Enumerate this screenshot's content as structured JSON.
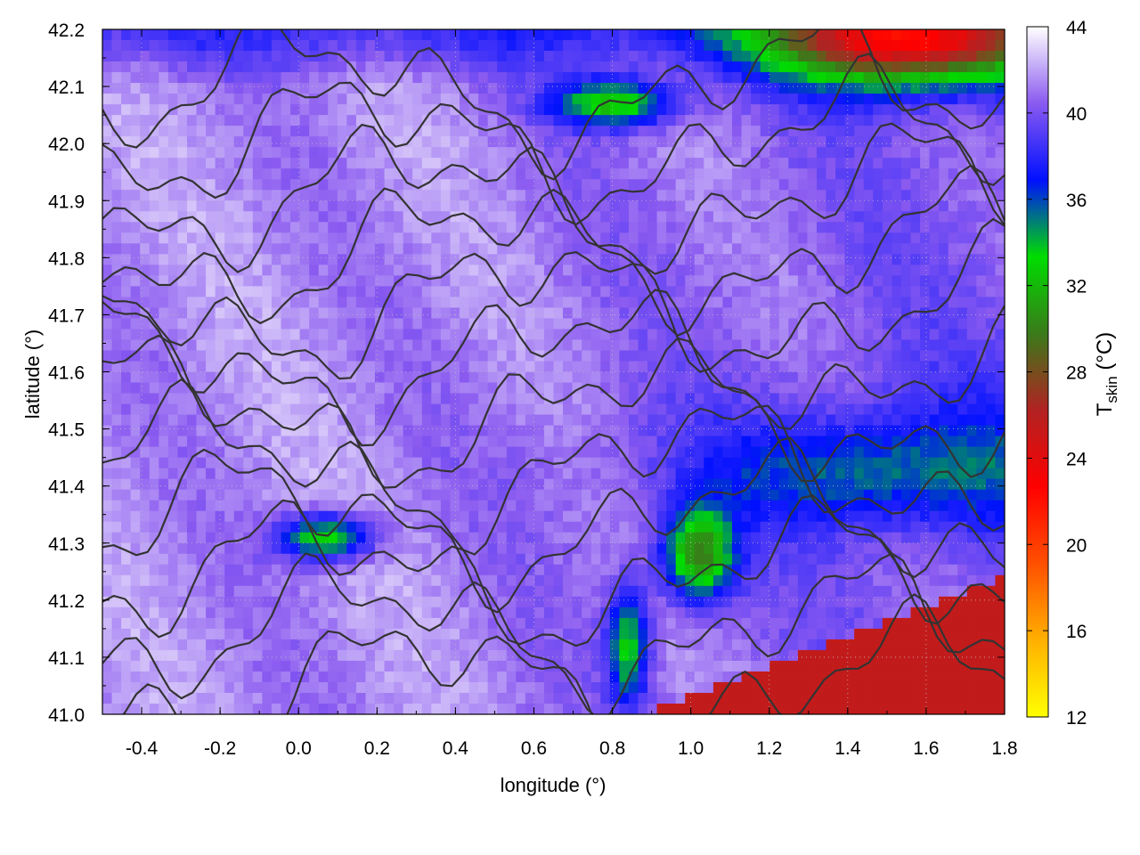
{
  "chart_data": {
    "type": "heatmap",
    "title": "",
    "xlabel": "longitude (°)",
    "ylabel": "latitude (°)",
    "xlim": [
      -0.5,
      1.8
    ],
    "ylim": [
      41.0,
      42.2
    ],
    "x_ticks": [
      "-0.4",
      "-0.2",
      "0.0",
      "0.2",
      "0.4",
      "0.6",
      "0.8",
      "1.0",
      "1.2",
      "1.4",
      "1.6",
      "1.8"
    ],
    "y_ticks": [
      "41.0",
      "41.1",
      "41.2",
      "41.3",
      "41.4",
      "41.5",
      "41.6",
      "41.7",
      "41.8",
      "41.9",
      "42.0",
      "42.1",
      "42.2"
    ],
    "grid": true,
    "colorbar": {
      "label_main": "T",
      "label_sub": "skin",
      "label_unit": " (°C)",
      "min": 12,
      "max": 44,
      "ticks": [
        "12",
        "16",
        "20",
        "24",
        "28",
        "32",
        "36",
        "40",
        "44"
      ],
      "palette": [
        "#ffff00",
        "#ffb000",
        "#ff5000",
        "#ff0000",
        "#b22222",
        "#3a7a1a",
        "#00dd00",
        "#0010ff",
        "#8a5af0",
        "#ffffff"
      ]
    },
    "field_features": [
      {
        "kind": "sea",
        "value": 25,
        "description_region": "southeast"
      },
      {
        "kind": "cool_vegetation",
        "value": 30,
        "description_region": "northeast, near 1.0 41.3, 0.85 41.1"
      },
      {
        "kind": "warm_land",
        "value": 41,
        "description_region": "west and north"
      }
    ],
    "contours": {
      "color": "#333333",
      "count": 12
    }
  }
}
